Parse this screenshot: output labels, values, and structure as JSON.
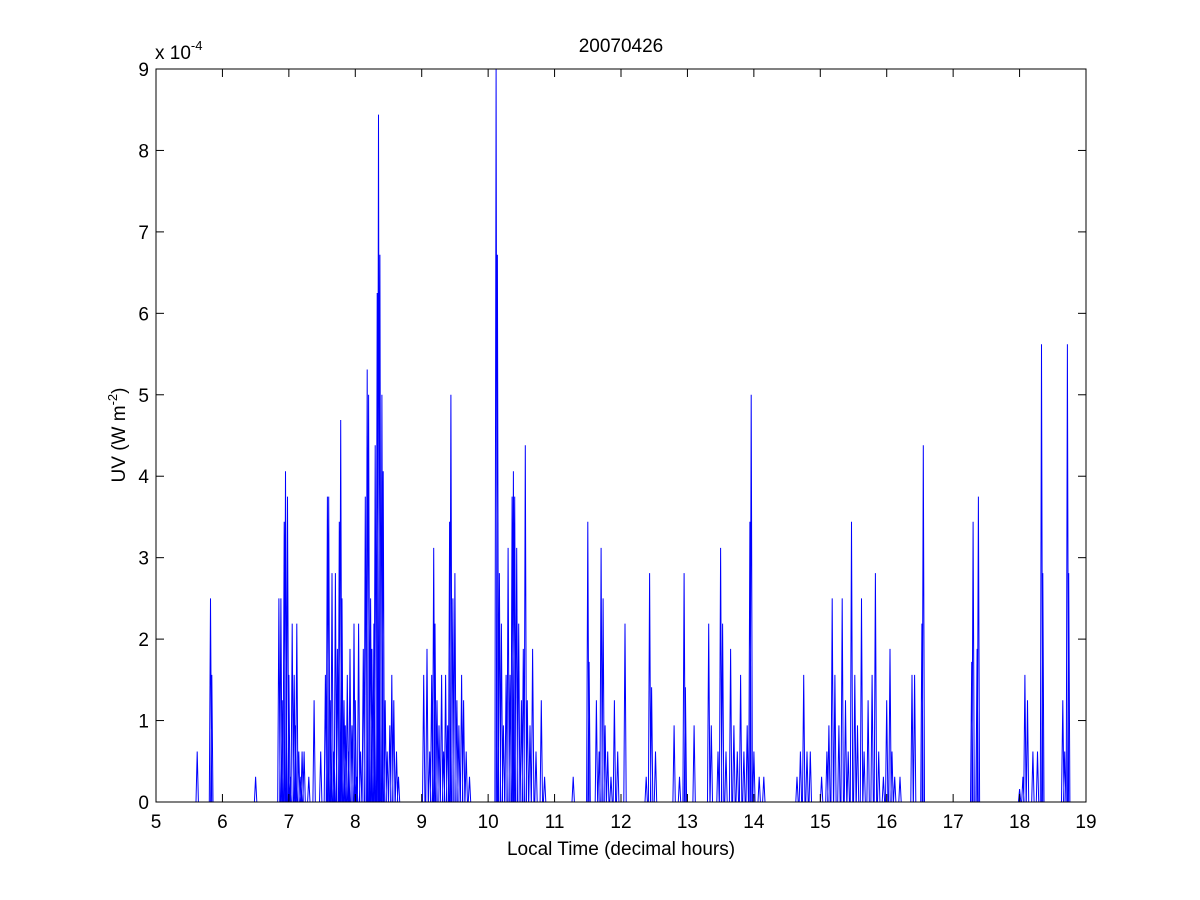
{
  "chart_data": {
    "type": "line",
    "title": "20070426",
    "xlabel": "Local Time (decimal hours)",
    "ylabel": {
      "main": "UV (W m",
      "superscript": "-2",
      "close": ")"
    },
    "y_exponent_label": {
      "base": "x 10",
      "exponent": "-4"
    },
    "xlim": [
      5,
      19
    ],
    "ylim": [
      0,
      9
    ],
    "y_scale_factor": 0.0001,
    "xticks": [
      5,
      6,
      7,
      8,
      9,
      10,
      11,
      12,
      13,
      14,
      15,
      16,
      17,
      18,
      19
    ],
    "yticks": [
      0,
      1,
      2,
      3,
      4,
      5,
      6,
      7,
      8,
      9
    ],
    "grid": false,
    "series": [
      {
        "color": "#0000ff",
        "spikes": [
          [
            5.62,
            0.62
          ],
          [
            5.82,
            2.5
          ],
          [
            5.84,
            1.56
          ],
          [
            6.5,
            0.31
          ],
          [
            6.85,
            2.5
          ],
          [
            6.88,
            2.5
          ],
          [
            6.9,
            1.25
          ],
          [
            6.93,
            3.44
          ],
          [
            6.95,
            4.06
          ],
          [
            6.98,
            3.75
          ],
          [
            7.0,
            1.56
          ],
          [
            7.02,
            0.31
          ],
          [
            7.05,
            2.19
          ],
          [
            7.08,
            1.56
          ],
          [
            7.1,
            0.94
          ],
          [
            7.12,
            2.19
          ],
          [
            7.15,
            0.62
          ],
          [
            7.18,
            0.31
          ],
          [
            7.2,
            0.62
          ],
          [
            7.23,
            0.62
          ],
          [
            7.3,
            0.31
          ],
          [
            7.38,
            1.25
          ],
          [
            7.48,
            0.62
          ],
          [
            7.55,
            1.56
          ],
          [
            7.58,
            3.75
          ],
          [
            7.6,
            3.75
          ],
          [
            7.63,
            1.25
          ],
          [
            7.65,
            2.81
          ],
          [
            7.68,
            0.62
          ],
          [
            7.7,
            2.81
          ],
          [
            7.73,
            1.88
          ],
          [
            7.76,
            3.44
          ],
          [
            7.78,
            4.69
          ],
          [
            7.8,
            2.5
          ],
          [
            7.83,
            1.25
          ],
          [
            7.85,
            0.94
          ],
          [
            7.88,
            1.56
          ],
          [
            7.9,
            0.62
          ],
          [
            7.92,
            1.88
          ],
          [
            7.95,
            0.94
          ],
          [
            7.98,
            2.19
          ],
          [
            8.0,
            1.25
          ],
          [
            8.02,
            0.31
          ],
          [
            8.05,
            2.19
          ],
          [
            8.08,
            0.62
          ],
          [
            8.12,
            1.88
          ],
          [
            8.15,
            3.75
          ],
          [
            8.18,
            5.31
          ],
          [
            8.2,
            5.0
          ],
          [
            8.23,
            2.5
          ],
          [
            8.25,
            1.88
          ],
          [
            8.28,
            2.19
          ],
          [
            8.3,
            4.38
          ],
          [
            8.33,
            6.25
          ],
          [
            8.35,
            8.44
          ],
          [
            8.37,
            6.72
          ],
          [
            8.4,
            5.0
          ],
          [
            8.42,
            4.06
          ],
          [
            8.45,
            1.25
          ],
          [
            8.48,
            0.62
          ],
          [
            8.52,
            0.94
          ],
          [
            8.55,
            1.56
          ],
          [
            8.58,
            1.25
          ],
          [
            8.62,
            0.62
          ],
          [
            8.65,
            0.31
          ],
          [
            9.03,
            1.56
          ],
          [
            9.08,
            1.88
          ],
          [
            9.12,
            0.62
          ],
          [
            9.15,
            1.56
          ],
          [
            9.18,
            3.12
          ],
          [
            9.2,
            2.19
          ],
          [
            9.23,
            1.25
          ],
          [
            9.26,
            0.94
          ],
          [
            9.3,
            1.56
          ],
          [
            9.33,
            0.62
          ],
          [
            9.36,
            1.56
          ],
          [
            9.39,
            0.94
          ],
          [
            9.42,
            3.44
          ],
          [
            9.44,
            5.0
          ],
          [
            9.47,
            2.5
          ],
          [
            9.5,
            2.81
          ],
          [
            9.53,
            1.25
          ],
          [
            9.56,
            0.94
          ],
          [
            9.6,
            1.56
          ],
          [
            9.63,
            1.25
          ],
          [
            9.67,
            0.62
          ],
          [
            9.72,
            0.31
          ],
          [
            10.12,
            9.0
          ],
          [
            10.14,
            6.72
          ],
          [
            10.17,
            2.81
          ],
          [
            10.2,
            2.19
          ],
          [
            10.23,
            0.94
          ],
          [
            10.27,
            1.56
          ],
          [
            10.3,
            3.12
          ],
          [
            10.33,
            1.56
          ],
          [
            10.36,
            3.75
          ],
          [
            10.38,
            4.06
          ],
          [
            10.4,
            3.75
          ],
          [
            10.43,
            3.12
          ],
          [
            10.46,
            2.19
          ],
          [
            10.5,
            1.25
          ],
          [
            10.53,
            1.88
          ],
          [
            10.56,
            4.38
          ],
          [
            10.59,
            1.25
          ],
          [
            10.63,
            0.94
          ],
          [
            10.67,
            1.88
          ],
          [
            10.72,
            0.62
          ],
          [
            10.8,
            1.25
          ],
          [
            10.85,
            0.31
          ],
          [
            11.28,
            0.31
          ],
          [
            11.5,
            3.44
          ],
          [
            11.52,
            1.72
          ],
          [
            11.63,
            1.25
          ],
          [
            11.67,
            0.62
          ],
          [
            11.7,
            3.12
          ],
          [
            11.73,
            2.5
          ],
          [
            11.76,
            0.94
          ],
          [
            11.8,
            0.62
          ],
          [
            11.85,
            0.31
          ],
          [
            11.9,
            1.25
          ],
          [
            11.95,
            0.62
          ],
          [
            12.06,
            2.19
          ],
          [
            12.38,
            0.31
          ],
          [
            12.43,
            2.81
          ],
          [
            12.46,
            1.41
          ],
          [
            12.52,
            0.62
          ],
          [
            12.8,
            0.94
          ],
          [
            12.88,
            0.31
          ],
          [
            12.95,
            2.81
          ],
          [
            12.97,
            1.41
          ],
          [
            13.1,
            0.94
          ],
          [
            13.32,
            2.19
          ],
          [
            13.36,
            0.94
          ],
          [
            13.46,
            0.62
          ],
          [
            13.5,
            3.12
          ],
          [
            13.53,
            2.19
          ],
          [
            13.58,
            0.62
          ],
          [
            13.65,
            1.88
          ],
          [
            13.7,
            0.94
          ],
          [
            13.75,
            0.62
          ],
          [
            13.8,
            1.56
          ],
          [
            13.85,
            0.62
          ],
          [
            13.9,
            0.94
          ],
          [
            13.94,
            3.44
          ],
          [
            13.96,
            5.0
          ],
          [
            14.0,
            0.62
          ],
          [
            14.08,
            0.31
          ],
          [
            14.15,
            0.31
          ],
          [
            14.65,
            0.31
          ],
          [
            14.7,
            0.62
          ],
          [
            14.75,
            1.56
          ],
          [
            14.8,
            0.62
          ],
          [
            14.85,
            0.62
          ],
          [
            15.02,
            0.31
          ],
          [
            15.1,
            0.62
          ],
          [
            15.13,
            0.94
          ],
          [
            15.18,
            2.5
          ],
          [
            15.22,
            1.56
          ],
          [
            15.28,
            0.94
          ],
          [
            15.33,
            2.5
          ],
          [
            15.38,
            1.25
          ],
          [
            15.42,
            0.62
          ],
          [
            15.47,
            3.44
          ],
          [
            15.52,
            1.56
          ],
          [
            15.56,
            0.94
          ],
          [
            15.62,
            2.5
          ],
          [
            15.66,
            0.62
          ],
          [
            15.72,
            1.25
          ],
          [
            15.78,
            1.56
          ],
          [
            15.83,
            2.81
          ],
          [
            15.88,
            0.62
          ],
          [
            15.95,
            0.31
          ],
          [
            16.0,
            1.25
          ],
          [
            16.05,
            1.88
          ],
          [
            16.08,
            0.62
          ],
          [
            16.12,
            0.31
          ],
          [
            16.2,
            0.31
          ],
          [
            16.38,
            1.56
          ],
          [
            16.42,
            1.56
          ],
          [
            16.53,
            2.19
          ],
          [
            16.55,
            4.38
          ],
          [
            17.28,
            1.72
          ],
          [
            17.3,
            3.44
          ],
          [
            17.36,
            1.88
          ],
          [
            17.38,
            3.75
          ],
          [
            18.0,
            0.16
          ],
          [
            18.05,
            0.31
          ],
          [
            18.08,
            1.56
          ],
          [
            18.12,
            1.25
          ],
          [
            18.2,
            0.62
          ],
          [
            18.27,
            0.62
          ],
          [
            18.33,
            5.62
          ],
          [
            18.35,
            2.81
          ],
          [
            18.65,
            1.25
          ],
          [
            18.68,
            0.62
          ],
          [
            18.72,
            5.62
          ],
          [
            18.74,
            2.81
          ]
        ]
      }
    ]
  }
}
